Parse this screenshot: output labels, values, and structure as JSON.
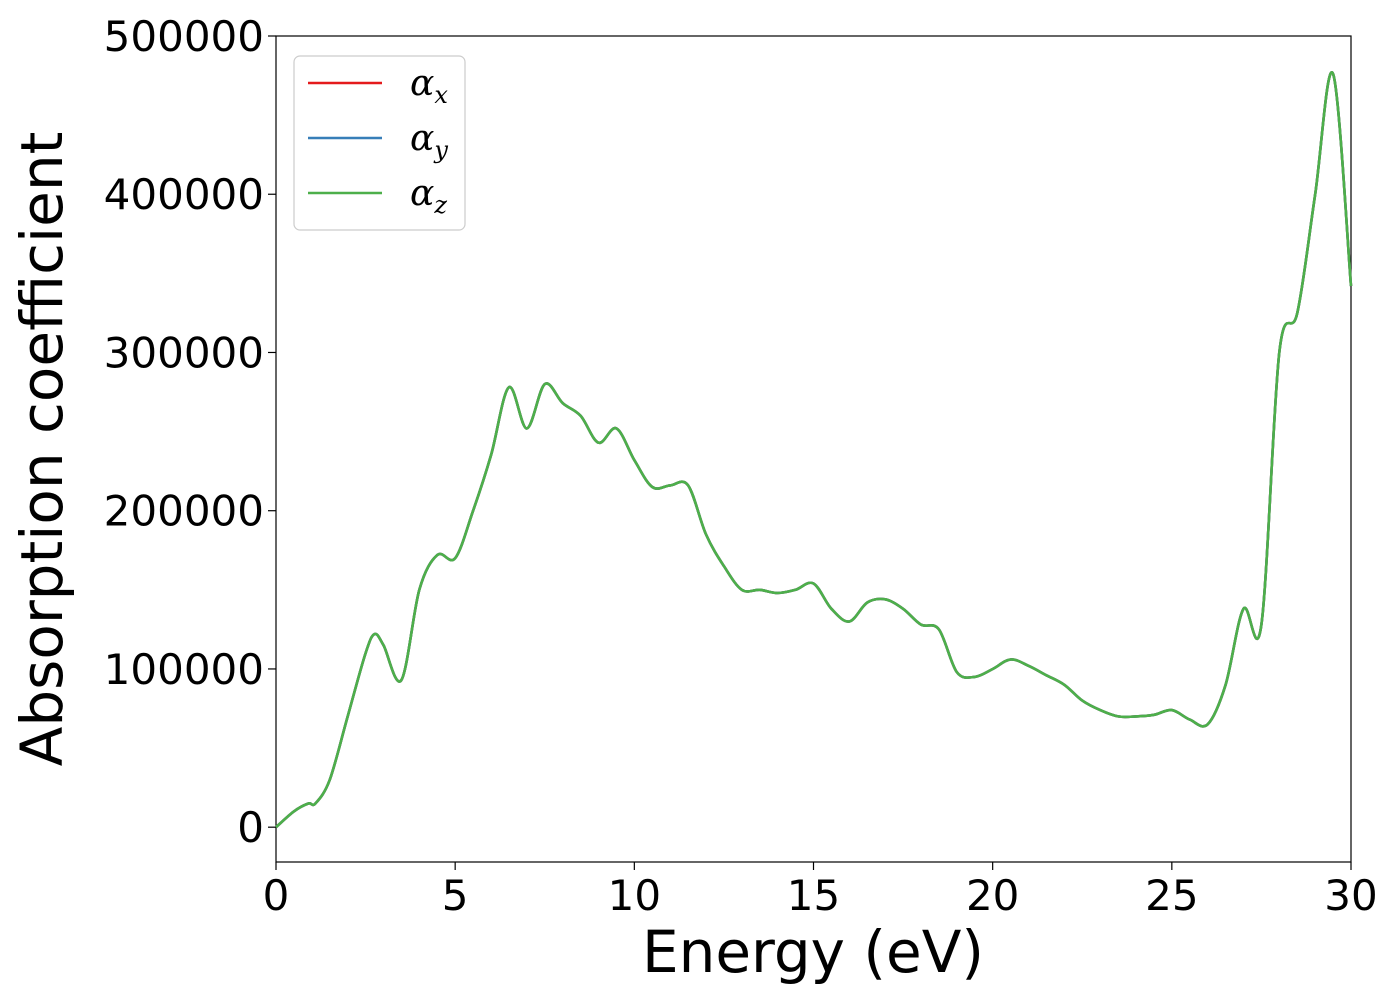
{
  "chart_data": {
    "type": "line",
    "title": "",
    "xlabel": "Energy (eV)",
    "ylabel": "Absorption coefficient",
    "xlim": [
      0,
      30
    ],
    "ylim": [
      -22000,
      500000
    ],
    "xticks": [
      "0",
      "5",
      "10",
      "15",
      "20",
      "25",
      "30"
    ],
    "yticks": [
      "0",
      "100000",
      "200000",
      "300000",
      "400000",
      "500000"
    ],
    "xtick_values": [
      0,
      5,
      10,
      15,
      20,
      25,
      30
    ],
    "ytick_values": [
      0,
      100000,
      200000,
      300000,
      400000,
      500000
    ],
    "grid": false,
    "legend_position": "top-left",
    "legend": [
      {
        "base": "α",
        "sub": "x",
        "color": "#e41a1c"
      },
      {
        "base": "α",
        "sub": "y",
        "color": "#377eb8"
      },
      {
        "base": "α",
        "sub": "z",
        "color": "#4daf4a"
      }
    ],
    "x": [
      0,
      0.5,
      0.9,
      1.1,
      1.5,
      2.0,
      2.5,
      2.75,
      3.0,
      3.5,
      4.0,
      4.5,
      5.0,
      5.5,
      6.0,
      6.5,
      7.0,
      7.5,
      8.0,
      8.5,
      9.0,
      9.5,
      10.0,
      10.5,
      11.0,
      11.5,
      12.0,
      12.5,
      13.0,
      13.5,
      14.0,
      14.5,
      15.0,
      15.5,
      16.0,
      16.5,
      17.0,
      17.5,
      18.0,
      18.5,
      19.0,
      19.5,
      20.0,
      20.5,
      21.0,
      21.5,
      22.0,
      22.5,
      23.0,
      23.5,
      24.0,
      24.5,
      25.0,
      25.5,
      26.0,
      26.5,
      27.0,
      27.5,
      28.0,
      28.5,
      29.0,
      29.5,
      30.0
    ],
    "series": [
      {
        "name": "α_x",
        "color": "#e41a1c",
        "values": [
          0,
          10000,
          15000,
          15000,
          30000,
          70000,
          110000,
          122000,
          115000,
          93000,
          150000,
          172000,
          170000,
          200000,
          235000,
          278000,
          252000,
          280000,
          268000,
          260000,
          243000,
          252000,
          232000,
          215000,
          216000,
          216000,
          185000,
          165000,
          150000,
          150000,
          148000,
          150000,
          154000,
          138000,
          130000,
          142000,
          144000,
          138000,
          128000,
          125000,
          98000,
          95000,
          100000,
          106000,
          102000,
          96000,
          90000,
          80000,
          74000,
          70000,
          70000,
          71000,
          74000,
          68000,
          65000,
          90000,
          138000,
          128000,
          300000,
          325000,
          400000,
          476000,
          342000
        ]
      },
      {
        "name": "α_y",
        "color": "#377eb8",
        "values": [
          0,
          10000,
          15000,
          15000,
          30000,
          70000,
          110000,
          122000,
          115000,
          93000,
          150000,
          172000,
          170000,
          200000,
          235000,
          278000,
          252000,
          280000,
          268000,
          260000,
          243000,
          252000,
          232000,
          215000,
          216000,
          216000,
          185000,
          165000,
          150000,
          150000,
          148000,
          150000,
          154000,
          138000,
          130000,
          142000,
          144000,
          138000,
          128000,
          125000,
          98000,
          95000,
          100000,
          106000,
          102000,
          96000,
          90000,
          80000,
          74000,
          70000,
          70000,
          71000,
          74000,
          68000,
          65000,
          90000,
          138000,
          128000,
          300000,
          325000,
          400000,
          476000,
          342000
        ]
      },
      {
        "name": "α_z",
        "color": "#4daf4a",
        "values": [
          0,
          10000,
          15000,
          15000,
          30000,
          70000,
          110000,
          122000,
          115000,
          93000,
          150000,
          172000,
          170000,
          200000,
          235000,
          278000,
          252000,
          280000,
          268000,
          260000,
          243000,
          252000,
          232000,
          215000,
          216000,
          216000,
          185000,
          165000,
          150000,
          150000,
          148000,
          150000,
          154000,
          138000,
          130000,
          142000,
          144000,
          138000,
          128000,
          125000,
          98000,
          95000,
          100000,
          106000,
          102000,
          96000,
          90000,
          80000,
          74000,
          70000,
          70000,
          71000,
          74000,
          68000,
          65000,
          90000,
          138000,
          128000,
          300000,
          325000,
          400000,
          476000,
          342000
        ]
      }
    ]
  }
}
